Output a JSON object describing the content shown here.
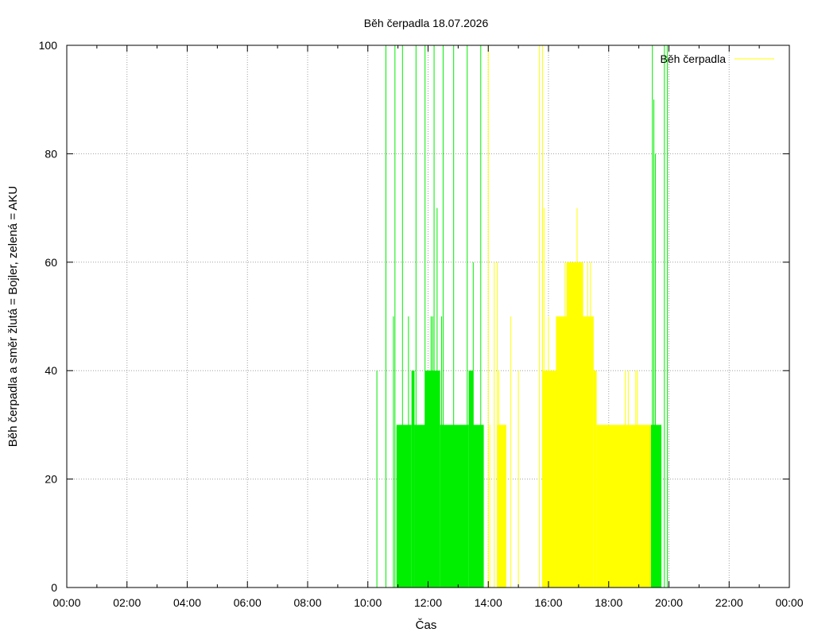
{
  "chart_data": {
    "type": "bar",
    "title": "Běh čerpadla 18.07.2026",
    "xlabel": "Čas",
    "ylabel": "Běh čerpadla a směr žlutá = Bojler, zelená = AKU",
    "xlim": [
      0,
      24
    ],
    "ylim": [
      0,
      100
    ],
    "x_unit": "hours",
    "x_ticks": [
      "00:00",
      "02:00",
      "04:00",
      "06:00",
      "08:00",
      "10:00",
      "12:00",
      "14:00",
      "16:00",
      "18:00",
      "20:00",
      "22:00",
      "00:00"
    ],
    "y_ticks": [
      "0",
      "20",
      "40",
      "60",
      "80",
      "100"
    ],
    "grid": true,
    "legend": {
      "position": "top-right",
      "entries": [
        {
          "label": "Běh čerpadla",
          "color": "#ffff00"
        }
      ]
    },
    "series": [
      {
        "color": "#00ee00",
        "description_mode": "segments",
        "segments": [
          {
            "x0": 10.95,
            "x1": 11.45,
            "y": 30
          },
          {
            "x0": 11.45,
            "x1": 11.55,
            "y": 40
          },
          {
            "x0": 11.55,
            "x1": 11.9,
            "y": 30
          },
          {
            "x0": 11.9,
            "x1": 12.4,
            "y": 40
          },
          {
            "x0": 12.4,
            "x1": 13.35,
            "y": 30
          },
          {
            "x0": 13.35,
            "x1": 13.5,
            "y": 40
          },
          {
            "x0": 13.5,
            "x1": 13.85,
            "y": 30
          },
          {
            "x0": 19.4,
            "x1": 19.75,
            "y": 30
          }
        ],
        "spikes": [
          {
            "x": 10.3,
            "y": 40
          },
          {
            "x": 10.6,
            "y": 100
          },
          {
            "x": 10.85,
            "y": 50
          },
          {
            "x": 10.9,
            "y": 100
          },
          {
            "x": 11.15,
            "y": 100
          },
          {
            "x": 11.35,
            "y": 50
          },
          {
            "x": 11.6,
            "y": 100
          },
          {
            "x": 11.9,
            "y": 100
          },
          {
            "x": 12.1,
            "y": 50
          },
          {
            "x": 12.15,
            "y": 50
          },
          {
            "x": 12.2,
            "y": 100
          },
          {
            "x": 12.3,
            "y": 70
          },
          {
            "x": 12.45,
            "y": 50
          },
          {
            "x": 12.5,
            "y": 100
          },
          {
            "x": 12.85,
            "y": 100
          },
          {
            "x": 13.3,
            "y": 100
          },
          {
            "x": 13.5,
            "y": 60
          },
          {
            "x": 13.75,
            "y": 100
          },
          {
            "x": 19.45,
            "y": 100
          },
          {
            "x": 19.5,
            "y": 90
          },
          {
            "x": 19.55,
            "y": 80
          },
          {
            "x": 19.85,
            "y": 100
          },
          {
            "x": 19.95,
            "y": 100
          }
        ]
      },
      {
        "color": "#ffff00",
        "description_mode": "segments",
        "segments": [
          {
            "x0": 14.3,
            "x1": 14.6,
            "y": 30
          },
          {
            "x0": 15.8,
            "x1": 16.25,
            "y": 40
          },
          {
            "x0": 16.25,
            "x1": 16.95,
            "y": 50
          },
          {
            "x0": 16.6,
            "x1": 17.15,
            "y": 60
          },
          {
            "x0": 16.95,
            "x1": 17.5,
            "y": 50
          },
          {
            "x0": 17.5,
            "x1": 17.6,
            "y": 40
          },
          {
            "x0": 17.6,
            "x1": 19.4,
            "y": 30
          }
        ],
        "spikes": [
          {
            "x": 14.0,
            "y": 100
          },
          {
            "x": 14.05,
            "y": 30
          },
          {
            "x": 14.2,
            "y": 60
          },
          {
            "x": 14.3,
            "y": 60
          },
          {
            "x": 14.35,
            "y": 40
          },
          {
            "x": 14.75,
            "y": 50
          },
          {
            "x": 15.0,
            "y": 40
          },
          {
            "x": 15.7,
            "y": 100
          },
          {
            "x": 15.8,
            "y": 100
          },
          {
            "x": 15.85,
            "y": 70
          },
          {
            "x": 16.0,
            "y": 50
          },
          {
            "x": 16.5,
            "y": 50
          },
          {
            "x": 16.55,
            "y": 60
          },
          {
            "x": 16.9,
            "y": 60
          },
          {
            "x": 16.95,
            "y": 70
          },
          {
            "x": 17.3,
            "y": 60
          },
          {
            "x": 17.4,
            "y": 60
          },
          {
            "x": 18.55,
            "y": 40
          },
          {
            "x": 18.65,
            "y": 40
          },
          {
            "x": 18.9,
            "y": 40
          },
          {
            "x": 18.95,
            "y": 40
          }
        ]
      }
    ]
  }
}
